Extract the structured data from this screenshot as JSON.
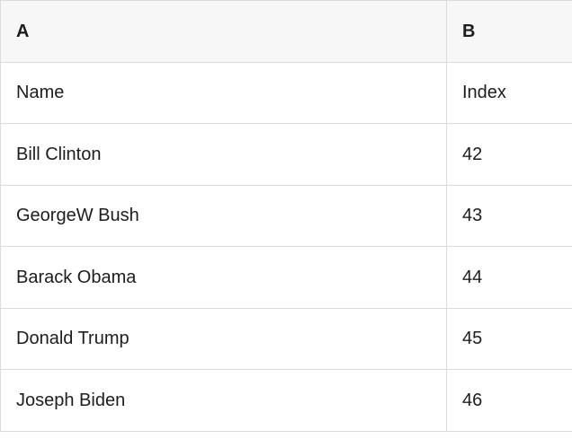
{
  "table": {
    "columns": [
      {
        "label": "A"
      },
      {
        "label": "B"
      }
    ],
    "rows": [
      [
        "Name",
        "Index"
      ],
      [
        "Bill Clinton",
        "42"
      ],
      [
        "GeorgeW Bush",
        "43"
      ],
      [
        "Barack Obama",
        "44"
      ],
      [
        "Donald Trump",
        "45"
      ],
      [
        "Joseph Biden",
        "46"
      ]
    ]
  },
  "colors": {
    "header_bg": "#f7f7f7",
    "body_bg": "#ffffff",
    "border": "#dcdcdc",
    "text": "#1d1d1f"
  }
}
